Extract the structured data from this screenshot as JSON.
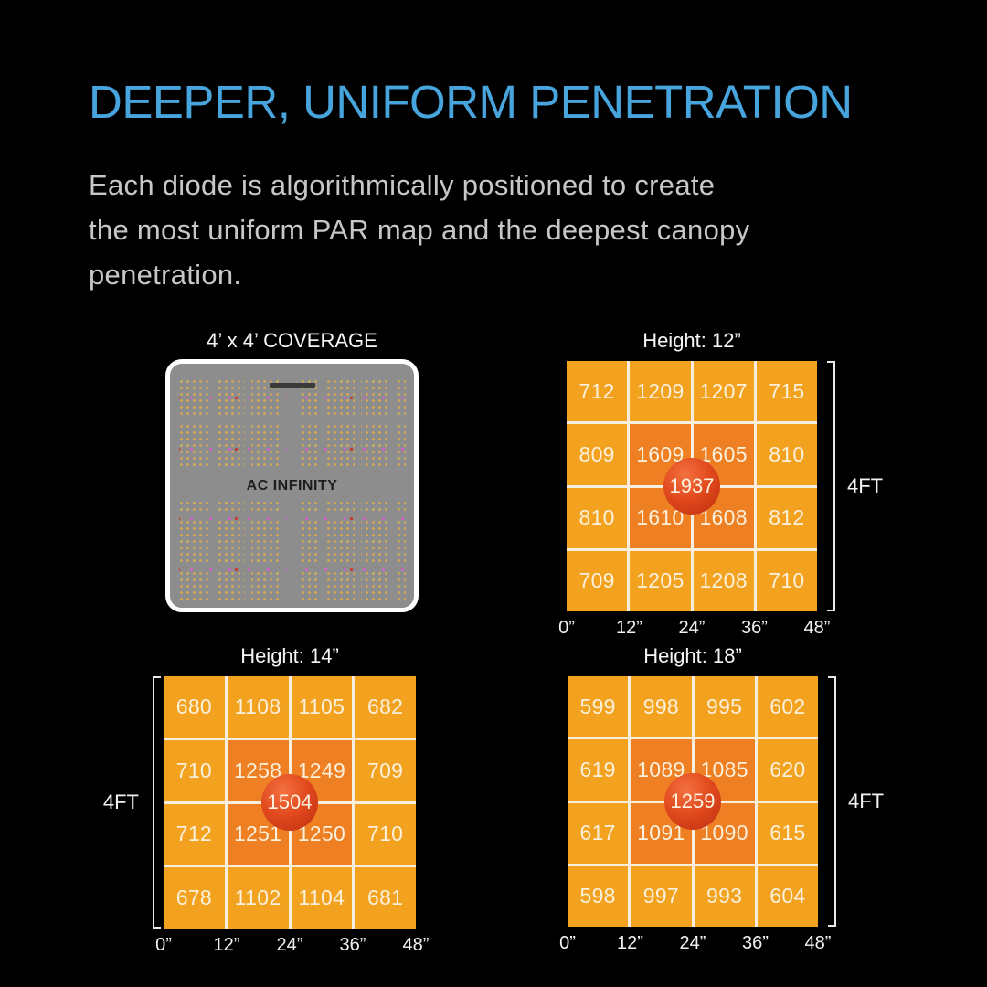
{
  "header": {
    "title": "DEEPER, UNIFORM PENETRATION"
  },
  "intro": {
    "lines": [
      "Each diode is algorithmically positioned to create",
      "the most uniform PAR map and the deepest canopy",
      "penetration."
    ]
  },
  "panel": {
    "title": "4’ x 4’ COVERAGE",
    "brand_label": "AC INFINITY"
  },
  "chart_data": [
    {
      "type": "heatmap",
      "title": "Height: 12”",
      "x_ticks": [
        "0”",
        "12”",
        "24”",
        "36”",
        "48”"
      ],
      "y_span_label": "4FT",
      "bracket_side": "right",
      "rows": [
        [
          712,
          1209,
          1207,
          715
        ],
        [
          809,
          1609,
          1605,
          810
        ],
        [
          810,
          1610,
          1608,
          812
        ],
        [
          709,
          1205,
          1208,
          710
        ]
      ],
      "center_peak": 1937
    },
    {
      "type": "heatmap",
      "title": "Height: 14”",
      "x_ticks": [
        "0”",
        "12”",
        "24”",
        "36”",
        "48”"
      ],
      "y_span_label": "4FT",
      "bracket_side": "left",
      "rows": [
        [
          680,
          1108,
          1105,
          682
        ],
        [
          710,
          1258,
          1249,
          709
        ],
        [
          712,
          1251,
          1250,
          710
        ],
        [
          678,
          1102,
          1104,
          681
        ]
      ],
      "center_peak": 1504
    },
    {
      "type": "heatmap",
      "title": "Height: 18”",
      "x_ticks": [
        "0”",
        "12”",
        "24”",
        "36”",
        "48”"
      ],
      "y_span_label": "4FT",
      "bracket_side": "right",
      "rows": [
        [
          599,
          998,
          995,
          602
        ],
        [
          619,
          1089,
          1085,
          620
        ],
        [
          617,
          1091,
          1090,
          615
        ],
        [
          598,
          997,
          993,
          604
        ]
      ],
      "center_peak": 1259
    }
  ],
  "colors": {
    "background": "#000000",
    "heading_blue": "#47a4dc",
    "body_text_gray": "#c7c7c7",
    "cell_orange": "#f2a21e",
    "cell_inner_orange": "#ee7f23",
    "peak_red": "#d8431a",
    "grid_line_cream": "#f7eedd",
    "value_text_cream": "#faf0db",
    "panel_gray": "#8d8d8d",
    "panel_border_white": "#ffffff",
    "diode_gold": "#dcab52",
    "diode_magenta": "#cf63c6",
    "diode_red": "#c63a2e",
    "axis_text_white": "#f2f2f2"
  }
}
